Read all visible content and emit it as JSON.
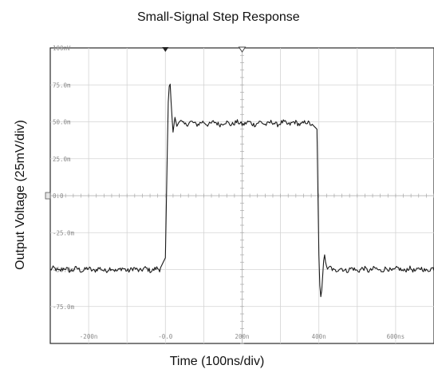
{
  "chart_data": {
    "type": "line",
    "title": "Small-Signal Step Response",
    "xlabel": "Time (100ns/div)",
    "ylabel": "Output Voltage (25mV/div)",
    "x_unit": "ns",
    "y_unit": "mV",
    "xlim": [
      -300,
      700
    ],
    "ylim": [
      -100,
      100
    ],
    "grid": true,
    "x_tick_labels": [
      {
        "value": -200,
        "label": "-200n"
      },
      {
        "value": 0,
        "label": "-0.0"
      },
      {
        "value": 200,
        "label": "200n"
      },
      {
        "value": 400,
        "label": "400n"
      },
      {
        "value": 600,
        "label": "600ns"
      }
    ],
    "y_tick_labels": [
      {
        "value": 100,
        "label": "100mV"
      },
      {
        "value": 75,
        "label": "75.0m"
      },
      {
        "value": 50,
        "label": "50.0m"
      },
      {
        "value": 25,
        "label": "25.0m"
      },
      {
        "value": 0,
        "label": "0.0"
      },
      {
        "value": -25,
        "label": "-25.0m"
      },
      {
        "value": -50,
        "label": "-50.0m"
      },
      {
        "value": -75,
        "label": "-75.0m"
      }
    ],
    "series": [
      {
        "color": "#1a1a1a",
        "x": [
          -300,
          -15,
          0,
          5,
          8,
          12,
          16,
          20,
          25,
          30,
          36,
          45,
          60,
          100,
          200,
          300,
          380,
          395,
          400,
          403,
          406,
          410,
          414,
          418,
          424,
          430,
          440,
          460,
          500,
          600,
          700
        ],
        "y": [
          -50,
          -50,
          -42,
          30,
          70,
          78,
          58,
          43,
          53,
          47,
          50,
          49,
          49,
          49,
          49,
          49,
          49,
          45,
          -40,
          -65,
          -70,
          -54,
          -38,
          -46,
          -51,
          -49,
          -50,
          -50,
          -50,
          -50,
          -50
        ]
      }
    ]
  }
}
